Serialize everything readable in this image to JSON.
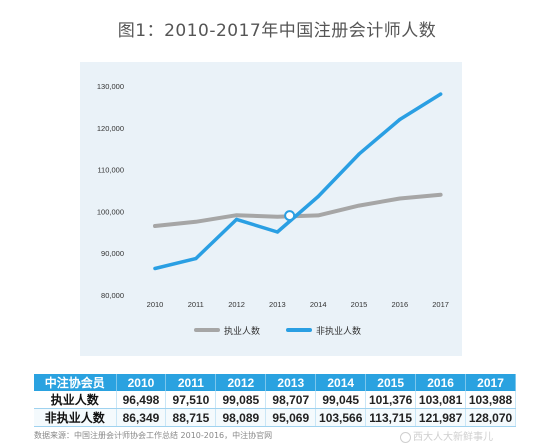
{
  "title": "图1：2010-2017年中国注册会计师人数",
  "chart_data": {
    "type": "line",
    "x": [
      "2010",
      "2011",
      "2012",
      "2013",
      "2014",
      "2015",
      "2016",
      "2017"
    ],
    "ylim": [
      80000,
      130000
    ],
    "yticks": [
      "80,000",
      "90,000",
      "100,000",
      "110,000",
      "120,000",
      "130,000"
    ],
    "grid": false,
    "legend_position": "bottom",
    "series": [
      {
        "name": "执业人数",
        "color": "#a6a6a6",
        "values": [
          96498,
          97510,
          99085,
          98707,
          99045,
          101376,
          103081,
          103988
        ]
      },
      {
        "name": "非执业人数",
        "color": "#2a9fe3",
        "values": [
          86349,
          88715,
          98089,
          95069,
          103566,
          113715,
          121987,
          128070
        ]
      }
    ],
    "marker": {
      "x": 2013.3,
      "y": 99000
    }
  },
  "table": {
    "header": [
      "中注协会员",
      "2010",
      "2011",
      "2012",
      "2013",
      "2014",
      "2015",
      "2016",
      "2017"
    ],
    "rows": [
      [
        "执业人数",
        "96,498",
        "97,510",
        "99,085",
        "98,707",
        "99,045",
        "101,376",
        "103,081",
        "103,988"
      ],
      [
        "非执业人数",
        "86,349",
        "88,715",
        "98,089",
        "95,069",
        "103,566",
        "113,715",
        "121,987",
        "128,070"
      ]
    ]
  },
  "source": "数据来源：中国注册会计师协会工作总结 2010-2016，中注协官网",
  "watermark": "西大人大新鲜事儿"
}
